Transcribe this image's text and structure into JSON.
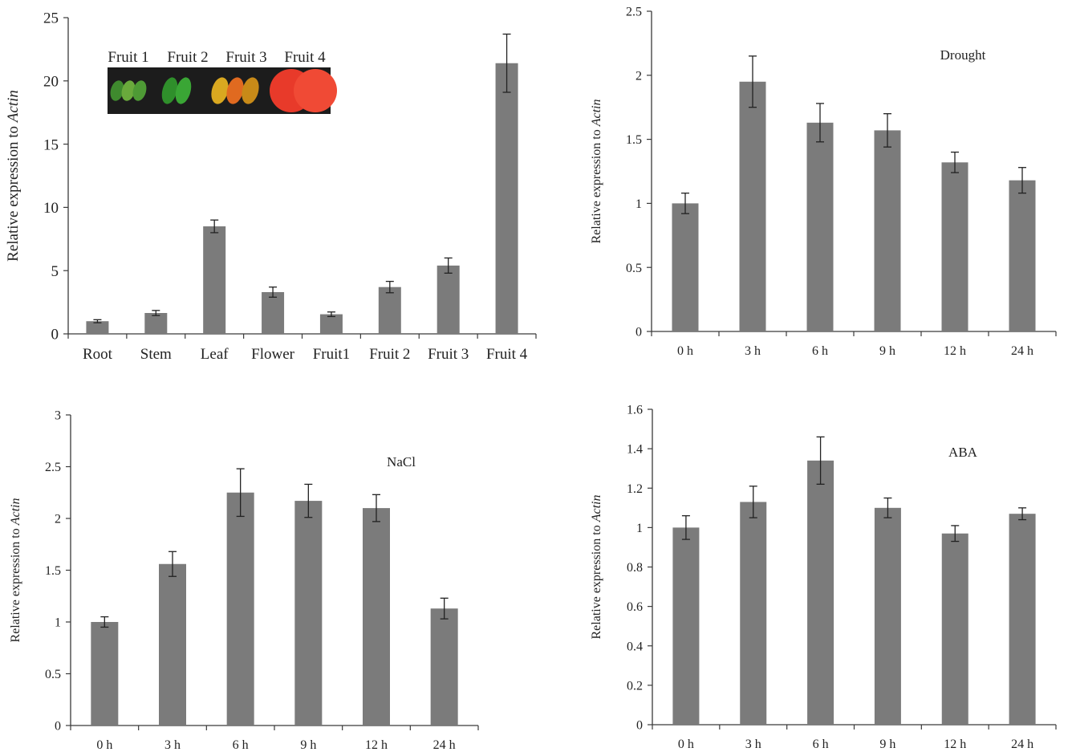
{
  "colors": {
    "bar": "#7b7b7b",
    "axis": "#3a3a3a",
    "text": "#222222"
  },
  "inset": {
    "labels": [
      "Fruit 1",
      "Fruit 2",
      "Fruit 3",
      "Fruit 4"
    ],
    "fruit_colors": [
      [
        "#3f8a2e",
        "#6aaa3c",
        "#4e9a35"
      ],
      [
        "#2f8f2b",
        "#3aa635"
      ],
      [
        "#d9a820",
        "#e06a20",
        "#c88a18"
      ],
      [
        "#e83a2a",
        "#f04a35"
      ]
    ]
  },
  "chart_data": [
    {
      "type": "bar",
      "categories": [
        "Root",
        "Stem",
        "Leaf",
        "Flower",
        "Fruit1",
        "Fruit 2",
        "Fruit 3",
        "Fruit 4"
      ],
      "values": [
        1.0,
        1.65,
        8.5,
        3.3,
        1.55,
        3.7,
        5.4,
        21.4
      ],
      "errors": [
        0.12,
        0.2,
        0.5,
        0.4,
        0.18,
        0.45,
        0.6,
        2.3
      ],
      "ylim": [
        0,
        25
      ],
      "yticks": [
        "0",
        "5",
        "10",
        "15",
        "20",
        "25"
      ],
      "ylabel": "Relative expression to",
      "ylabel_italic": "Actin",
      "annotation": ""
    },
    {
      "type": "bar",
      "categories": [
        "0 h",
        "3 h",
        "6 h",
        "9 h",
        "12 h",
        "24 h"
      ],
      "values": [
        1.0,
        1.95,
        1.63,
        1.57,
        1.32,
        1.18
      ],
      "errors": [
        0.08,
        0.2,
        0.15,
        0.13,
        0.08,
        0.1
      ],
      "ylim": [
        0,
        2.5
      ],
      "yticks": [
        "0",
        "0.5",
        "1",
        "1.5",
        "2",
        "2.5"
      ],
      "ylabel": "Relative expression to",
      "ylabel_italic": "Actin",
      "annotation": "Drought"
    },
    {
      "type": "bar",
      "categories": [
        "0 h",
        "3 h",
        "6 h",
        "9 h",
        "12 h",
        "24 h"
      ],
      "values": [
        1.0,
        1.56,
        2.25,
        2.17,
        2.1,
        1.13
      ],
      "errors": [
        0.05,
        0.12,
        0.23,
        0.16,
        0.13,
        0.1
      ],
      "ylim": [
        0,
        3
      ],
      "yticks": [
        "0",
        "0.5",
        "1",
        "1.5",
        "2",
        "2.5",
        "3"
      ],
      "ylabel": "Relative expression to",
      "ylabel_italic": "Actin",
      "annotation": "NaCl"
    },
    {
      "type": "bar",
      "categories": [
        "0 h",
        "3 h",
        "6 h",
        "9 h",
        "12 h",
        "24 h"
      ],
      "values": [
        1.0,
        1.13,
        1.34,
        1.1,
        0.97,
        1.07
      ],
      "errors": [
        0.06,
        0.08,
        0.12,
        0.05,
        0.04,
        0.03
      ],
      "ylim": [
        0,
        1.6
      ],
      "yticks": [
        "0",
        "0.2",
        "0.4",
        "0.6",
        "0.8",
        "1",
        "1.2",
        "1.4",
        "1.6"
      ],
      "ylabel": "Relative expression to",
      "ylabel_italic": "Actin",
      "annotation": "ABA"
    }
  ]
}
